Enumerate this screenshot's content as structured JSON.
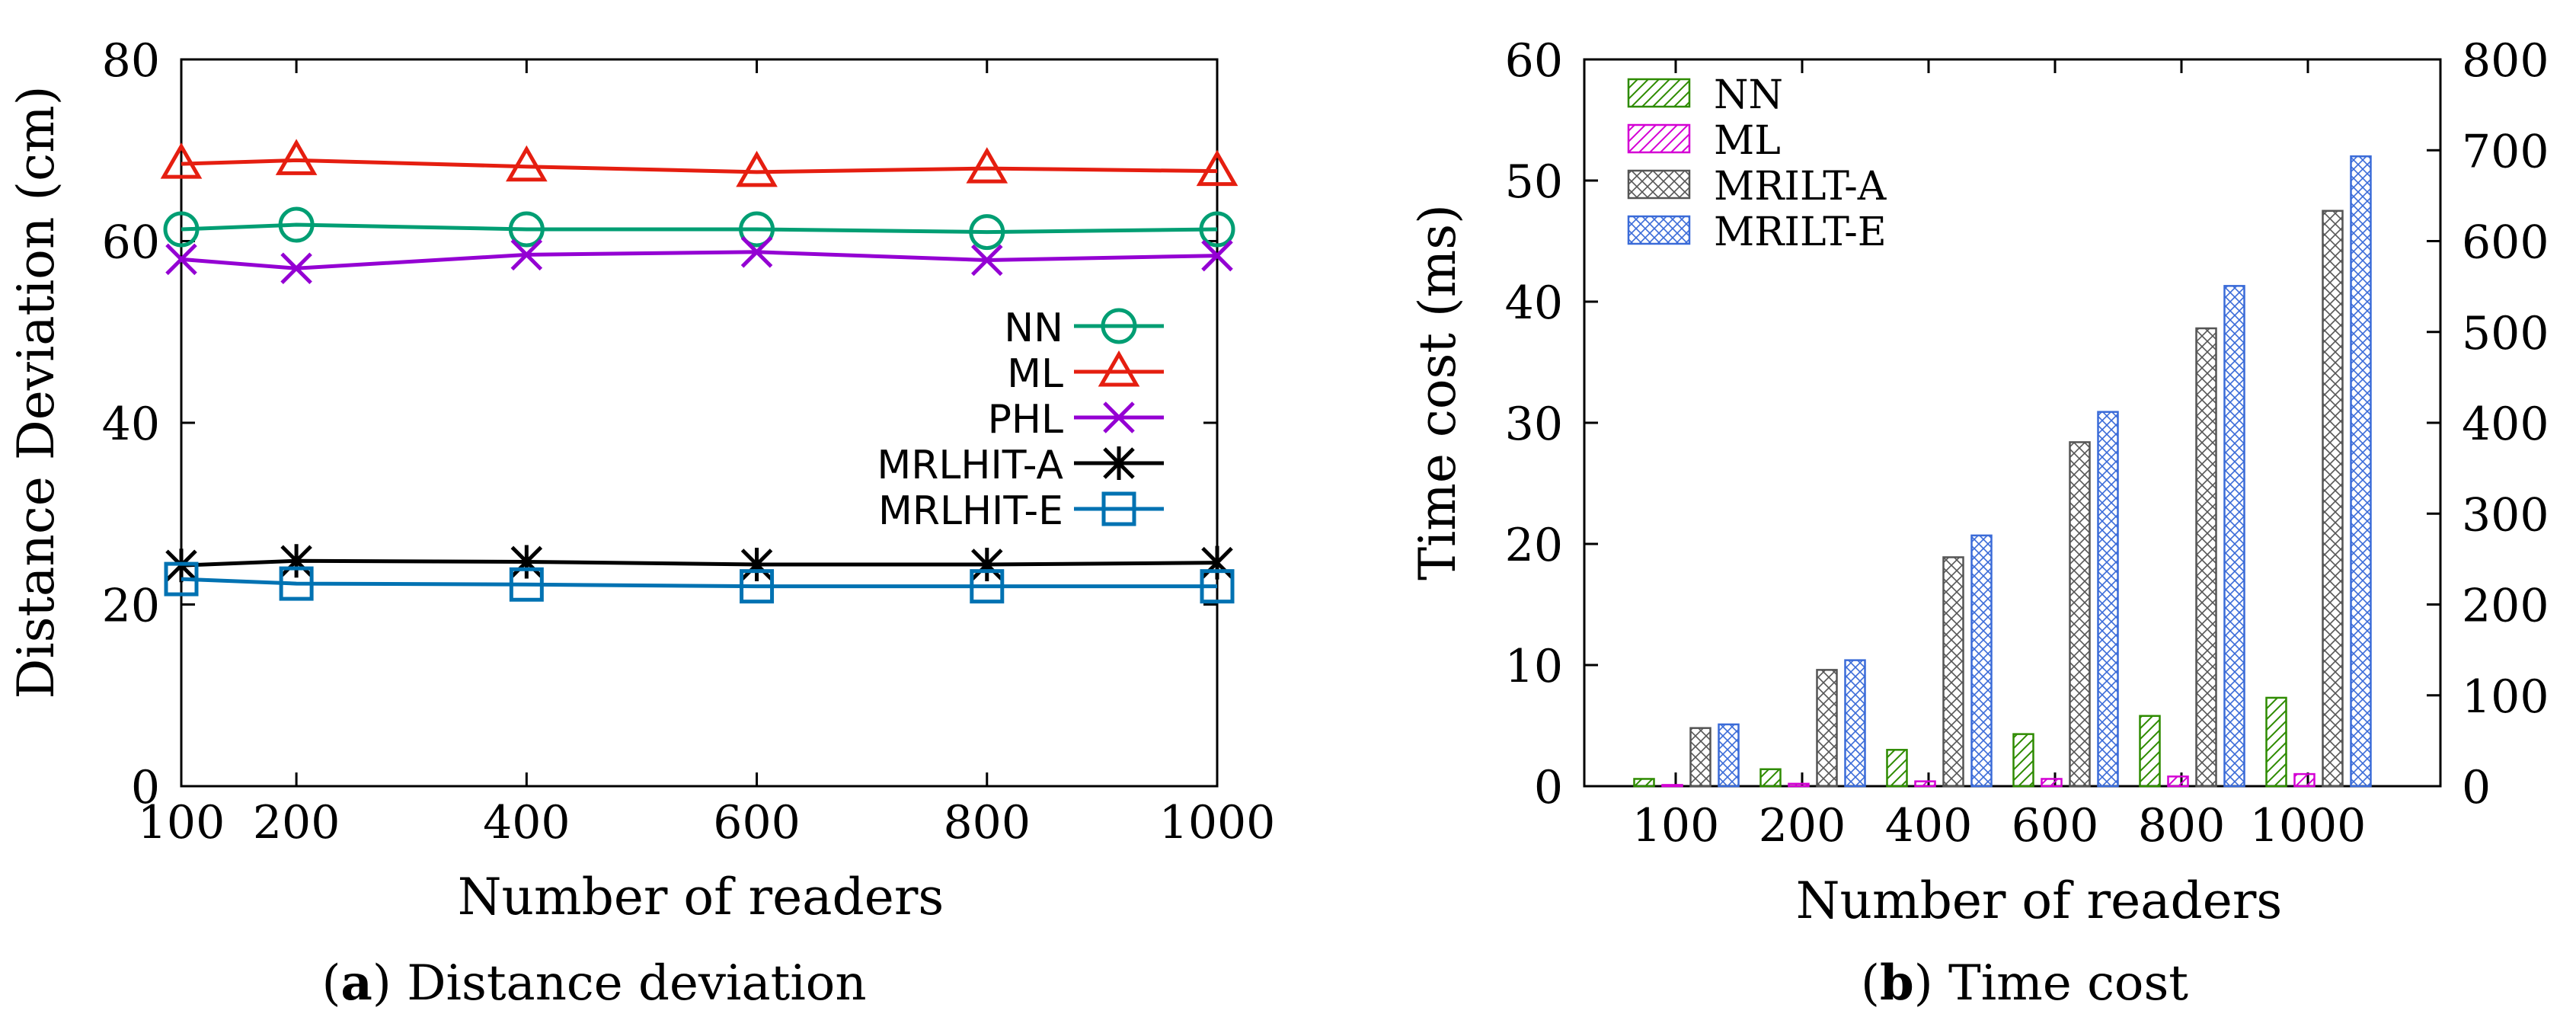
{
  "figure": {
    "caption_a_bold": "a",
    "caption_a_text": " Distance deviation",
    "caption_b_bold": "b",
    "caption_b_text": " Time cost"
  },
  "chart_data": [
    {
      "type": "line",
      "title": "",
      "xlabel": "Number of readers",
      "ylabel": "Distance Deviation (cm)",
      "x": [
        100,
        200,
        400,
        600,
        800,
        1000
      ],
      "xticks": [
        "100",
        "200",
        "400",
        "600",
        "800",
        "1000"
      ],
      "xlim": [
        100,
        1000
      ],
      "ylim": [
        0,
        80
      ],
      "yticks": [
        "0",
        "20",
        "40",
        "60",
        "80"
      ],
      "legend_position": "center-right",
      "series": [
        {
          "name": "NN",
          "color": "#009e73",
          "marker": "circle",
          "values": [
            61.3,
            61.8,
            61.3,
            61.3,
            61.0,
            61.3
          ]
        },
        {
          "name": "ML",
          "color": "#e51e10",
          "marker": "triangle",
          "values": [
            68.5,
            68.9,
            68.2,
            67.6,
            68.0,
            67.7
          ]
        },
        {
          "name": "PHL",
          "color": "#9400d3",
          "marker": "x",
          "values": [
            58.0,
            57.0,
            58.5,
            58.8,
            57.9,
            58.4
          ]
        },
        {
          "name": "MRLHIT-A",
          "color": "#000000",
          "marker": "asterisk",
          "values": [
            24.3,
            24.8,
            24.7,
            24.4,
            24.4,
            24.6
          ]
        },
        {
          "name": "MRLHIT-E",
          "color": "#0072b2",
          "marker": "square",
          "values": [
            22.8,
            22.3,
            22.2,
            22.0,
            22.0,
            22.0
          ]
        }
      ]
    },
    {
      "type": "bar",
      "title": "",
      "xlabel": "Number of readers",
      "ylabel": "Time cost (ms)",
      "categories": [
        "100",
        "200",
        "400",
        "600",
        "800",
        "1000"
      ],
      "ylim": [
        0,
        60
      ],
      "yticks": [
        "0",
        "10",
        "20",
        "30",
        "40",
        "50",
        "60"
      ],
      "y2lim": [
        0,
        800
      ],
      "y2ticks": [
        "0",
        "100",
        "200",
        "300",
        "400",
        "500",
        "600",
        "700",
        "800"
      ],
      "legend_position": "top-left",
      "series": [
        {
          "name": "NN",
          "color": "#2e8b00",
          "pattern": "diagonal",
          "values": [
            0.6,
            1.4,
            3.0,
            4.3,
            5.8,
            7.3
          ]
        },
        {
          "name": "ML",
          "color": "#d400d4",
          "pattern": "diagonal",
          "values": [
            0.1,
            0.2,
            0.4,
            0.6,
            0.8,
            1.0
          ]
        },
        {
          "name": "MRILT-A",
          "color": "#555555",
          "pattern": "crosshatch",
          "values": [
            4.8,
            9.6,
            18.9,
            28.4,
            37.8,
            47.5
          ]
        },
        {
          "name": "MRILT-E",
          "color": "#3a6bd8",
          "pattern": "crosshatch",
          "values": [
            5.1,
            10.4,
            20.7,
            30.9,
            41.3,
            52.0
          ]
        }
      ]
    }
  ]
}
